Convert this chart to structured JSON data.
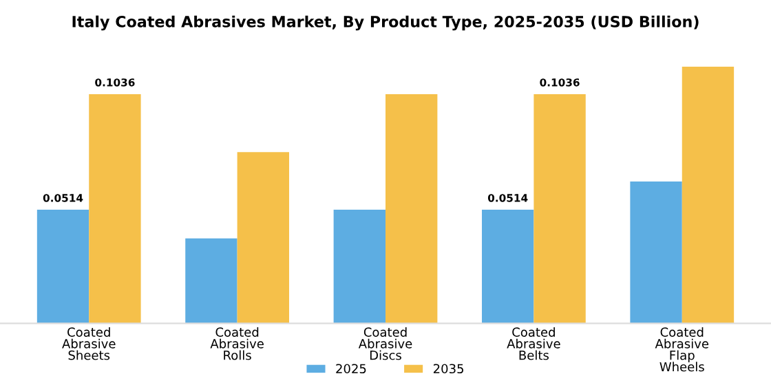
{
  "chart_data": {
    "type": "bar",
    "title": "Italy Coated Abrasives Market, By Product Type, 2025-2035 (USD Billion)",
    "categories": [
      "Coated Abrasive Sheets",
      "Coated Abrasive Rolls",
      "Coated Abrasive Discs",
      "Coated Abrasive Belts",
      "Coated Abrasive Flap Wheels"
    ],
    "series": [
      {
        "name": "2025",
        "color": "#5dade2",
        "values": [
          0.0514,
          0.0384,
          0.0514,
          0.0514,
          0.0641
        ],
        "value_labels": [
          "0.0514",
          null,
          null,
          "0.0514",
          null
        ]
      },
      {
        "name": "2035",
        "color": "#f5c04a",
        "values": [
          0.1036,
          0.0774,
          0.1036,
          0.1036,
          0.116
        ],
        "value_labels": [
          "0.1036",
          null,
          null,
          "0.1036",
          null
        ]
      }
    ],
    "legend": "bottom",
    "grid": false
  }
}
